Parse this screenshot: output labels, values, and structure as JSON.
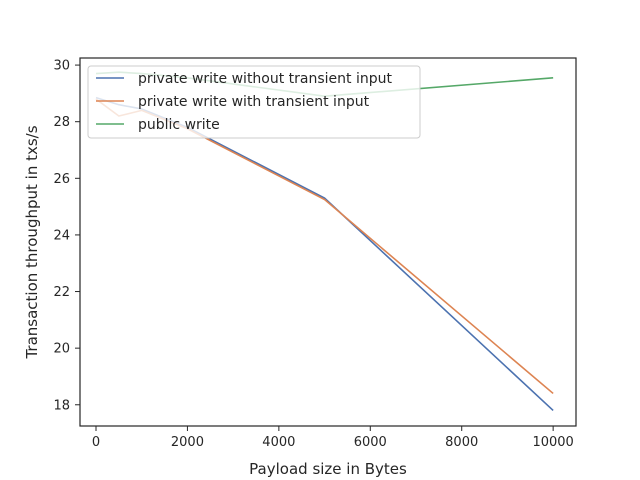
{
  "chart_data": {
    "type": "line",
    "title": "",
    "xlabel": "Payload size in Bytes",
    "ylabel": "Transaction throughput in txs/s",
    "xlim": [
      -350,
      10500
    ],
    "ylim": [
      17.25,
      30.25
    ],
    "x_ticks": [
      0,
      2000,
      4000,
      6000,
      8000,
      10000
    ],
    "y_ticks": [
      18,
      20,
      22,
      24,
      26,
      28,
      30
    ],
    "grid": false,
    "legend_position": "top-left",
    "series": [
      {
        "name": "private write without transient input",
        "color": "#4c72b0",
        "x": [
          0,
          500,
          1000,
          2000,
          5000,
          10000
        ],
        "y": [
          28.85,
          28.6,
          28.45,
          27.8,
          25.3,
          17.8
        ]
      },
      {
        "name": "private write with transient input",
        "color": "#dd8452",
        "x": [
          0,
          500,
          1000,
          2000,
          5000,
          10000
        ],
        "y": [
          28.8,
          28.2,
          28.4,
          27.75,
          25.25,
          18.4
        ]
      },
      {
        "name": "public write",
        "color": "#55a868",
        "x": [
          0,
          500,
          1000,
          2000,
          5000,
          10000
        ],
        "y": [
          29.7,
          29.75,
          29.7,
          29.55,
          28.9,
          29.55
        ]
      }
    ]
  }
}
